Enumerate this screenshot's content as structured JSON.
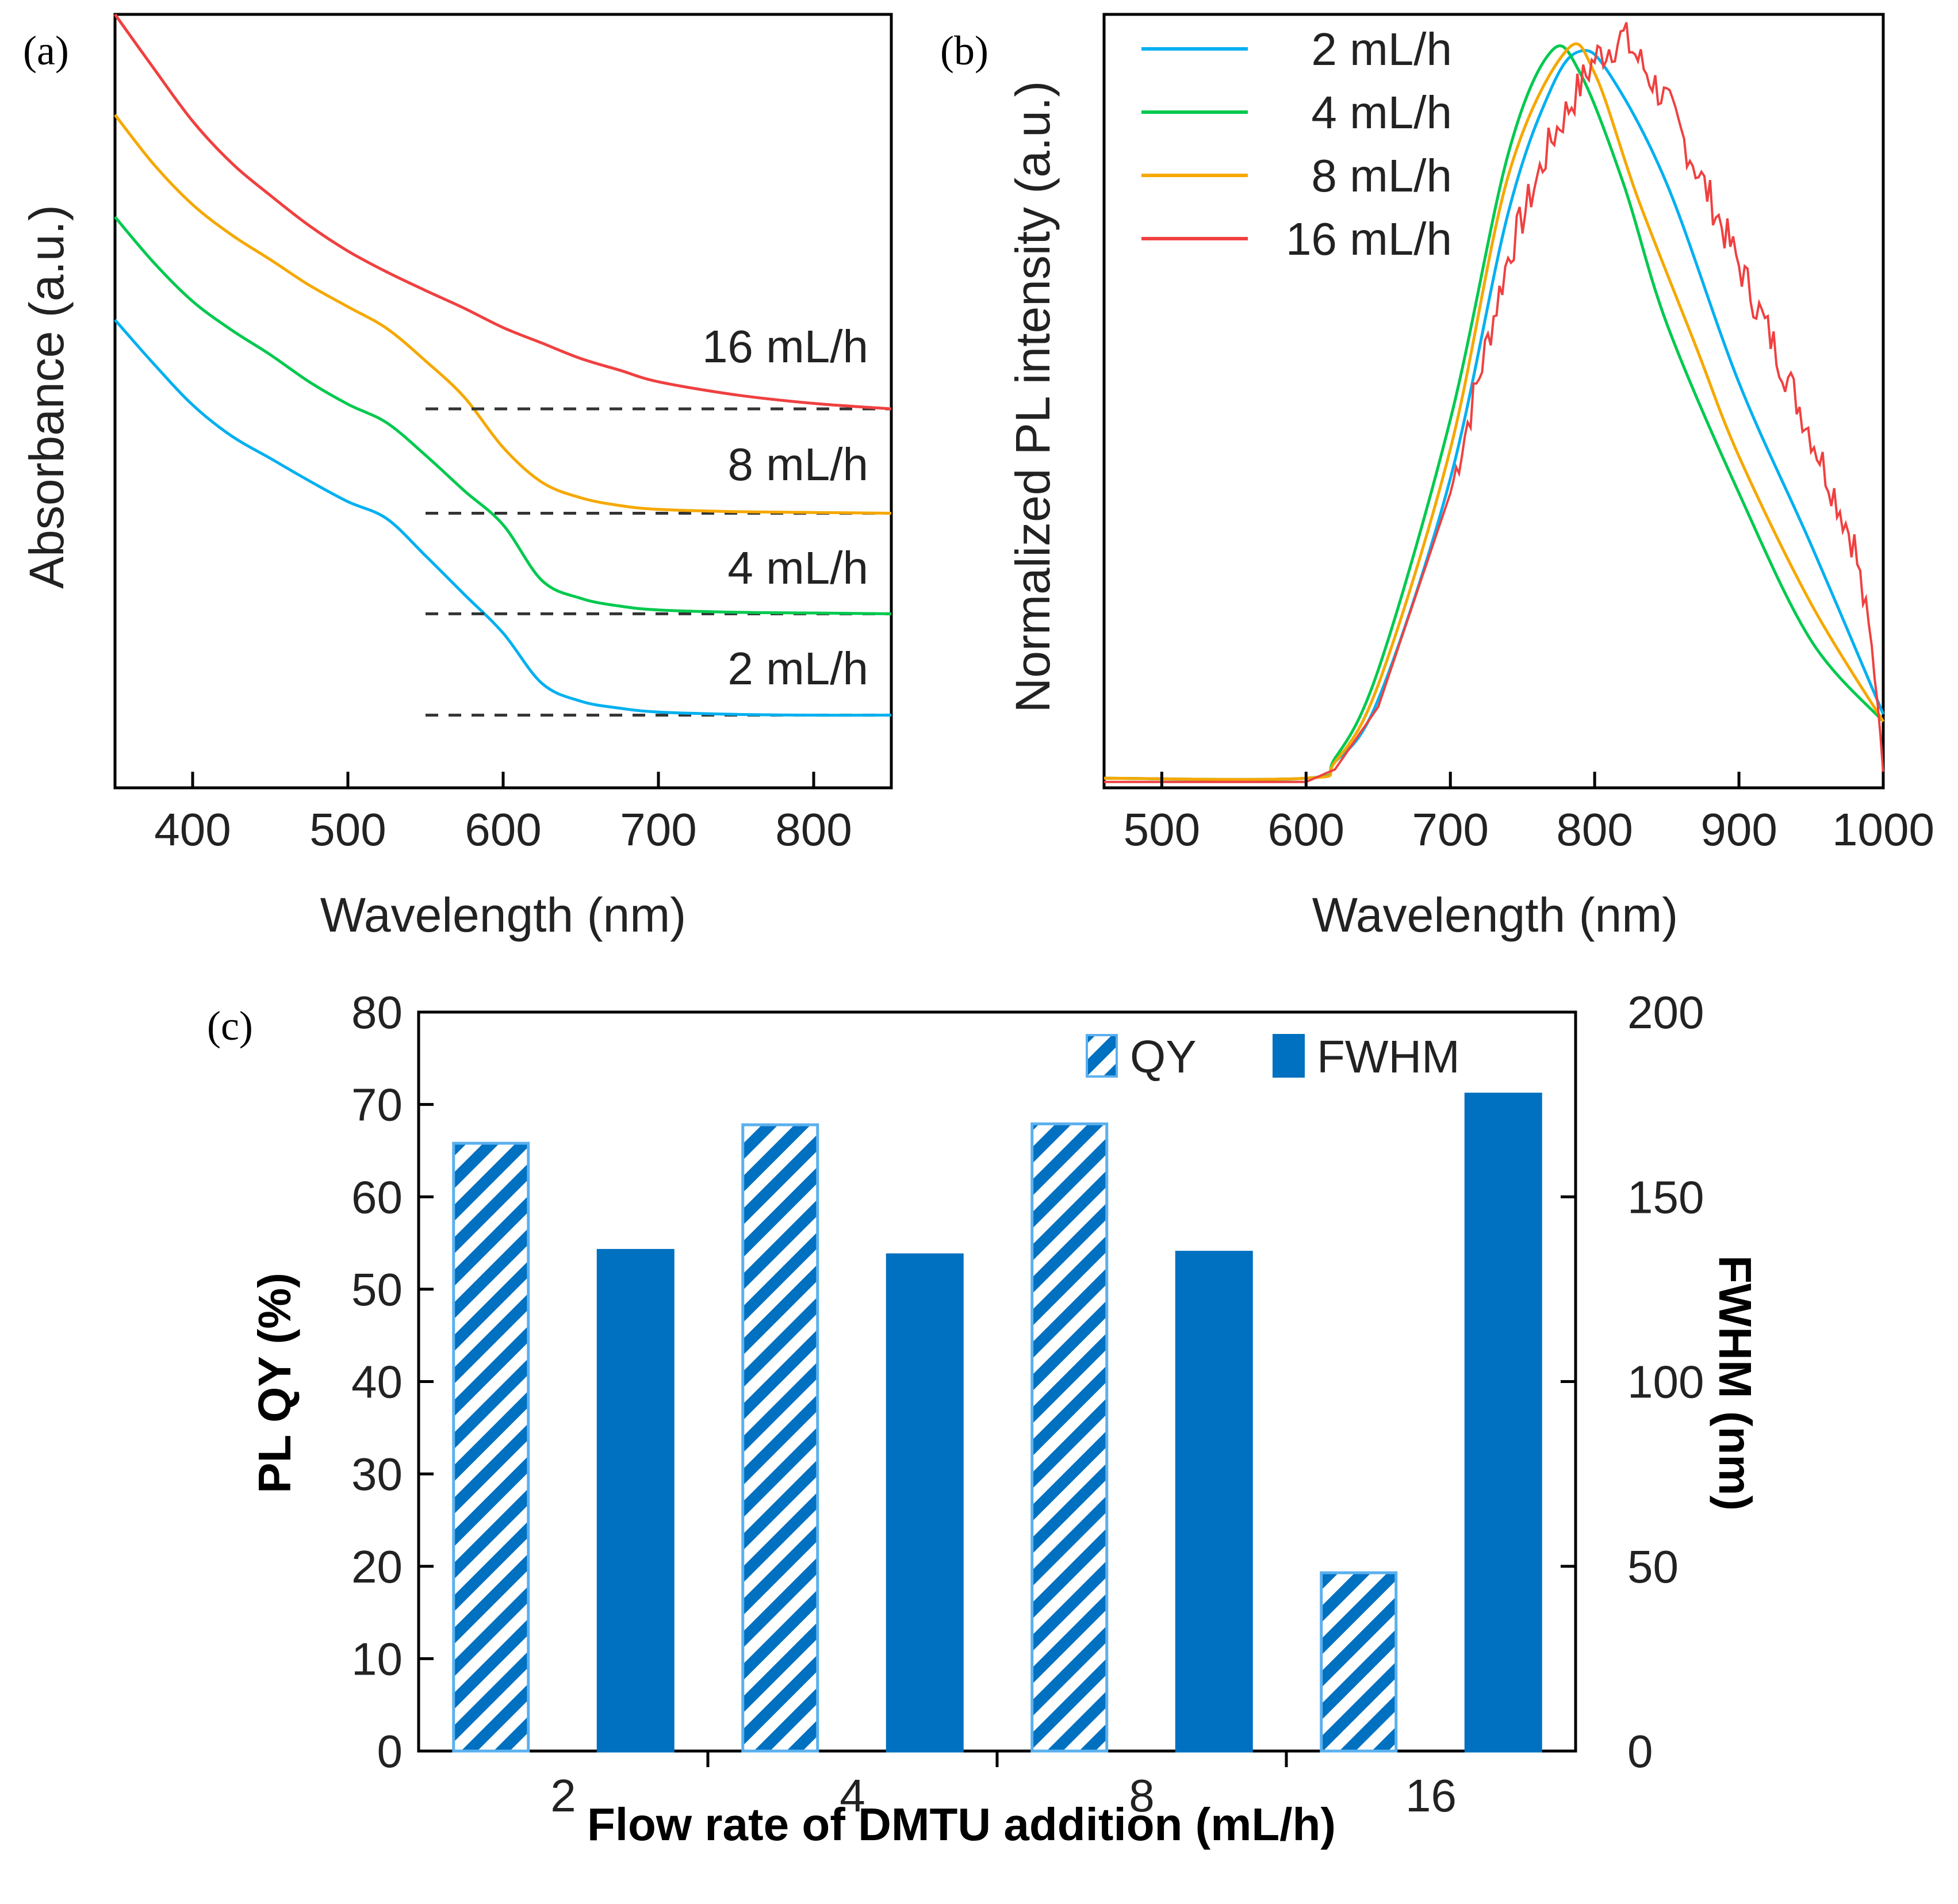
{
  "chart_data": [
    {
      "panel": "(a)",
      "type": "line",
      "title": "",
      "xlabel": "Wavelength (nm)",
      "ylabel": "Absorbance (a.u.)",
      "xlim": [
        350,
        850
      ],
      "ylim": [
        0,
        1
      ],
      "xticks": [
        400,
        500,
        600,
        700,
        800
      ],
      "y_ticks_shown": false,
      "series": [
        {
          "name": "2 mL/h",
          "color": "#00B0F0",
          "baseline": 0.094,
          "points": [
            [
              350,
              0.605
            ],
            [
              375,
              0.548
            ],
            [
              400,
              0.495
            ],
            [
              425,
              0.455
            ],
            [
              450,
              0.426
            ],
            [
              475,
              0.397
            ],
            [
              500,
              0.37
            ],
            [
              525,
              0.348
            ],
            [
              550,
              0.3
            ],
            [
              575,
              0.25
            ],
            [
              600,
              0.2
            ],
            [
              625,
              0.135
            ],
            [
              650,
              0.112
            ],
            [
              675,
              0.103
            ],
            [
              700,
              0.098
            ],
            [
              750,
              0.095
            ],
            [
              800,
              0.094
            ],
            [
              850,
              0.094
            ]
          ]
        },
        {
          "name": "4 mL/h",
          "color": "#00C94E",
          "baseline": 0.225,
          "points": [
            [
              350,
              0.738
            ],
            [
              375,
              0.679
            ],
            [
              400,
              0.629
            ],
            [
              425,
              0.592
            ],
            [
              450,
              0.56
            ],
            [
              475,
              0.525
            ],
            [
              500,
              0.496
            ],
            [
              525,
              0.472
            ],
            [
              550,
              0.43
            ],
            [
              575,
              0.384
            ],
            [
              600,
              0.34
            ],
            [
              625,
              0.268
            ],
            [
              650,
              0.245
            ],
            [
              675,
              0.235
            ],
            [
              700,
              0.23
            ],
            [
              750,
              0.227
            ],
            [
              800,
              0.226
            ],
            [
              850,
              0.225
            ]
          ]
        },
        {
          "name": "8 mL/h",
          "color": "#F5A800",
          "baseline": 0.355,
          "points": [
            [
              350,
              0.87
            ],
            [
              375,
              0.806
            ],
            [
              400,
              0.754
            ],
            [
              425,
              0.715
            ],
            [
              450,
              0.683
            ],
            [
              475,
              0.65
            ],
            [
              500,
              0.622
            ],
            [
              525,
              0.594
            ],
            [
              550,
              0.552
            ],
            [
              575,
              0.505
            ],
            [
              600,
              0.44
            ],
            [
              625,
              0.395
            ],
            [
              650,
              0.375
            ],
            [
              675,
              0.365
            ],
            [
              700,
              0.36
            ],
            [
              750,
              0.357
            ],
            [
              800,
              0.356
            ],
            [
              850,
              0.355
            ]
          ]
        },
        {
          "name": "16 mL/h",
          "color": "#F04040",
          "baseline": 0.49,
          "points": [
            [
              350,
              1.0
            ],
            [
              375,
              0.93
            ],
            [
              400,
              0.862
            ],
            [
              425,
              0.808
            ],
            [
              450,
              0.766
            ],
            [
              475,
              0.727
            ],
            [
              500,
              0.694
            ],
            [
              525,
              0.667
            ],
            [
              550,
              0.643
            ],
            [
              575,
              0.62
            ],
            [
              600,
              0.595
            ],
            [
              625,
              0.575
            ],
            [
              650,
              0.555
            ],
            [
              675,
              0.54
            ],
            [
              700,
              0.525
            ],
            [
              750,
              0.508
            ],
            [
              800,
              0.497
            ],
            [
              850,
              0.49
            ]
          ]
        }
      ],
      "curve_labels": [
        "16 mL/h",
        "8 mL/h",
        "4 mL/h",
        "2 mL/h"
      ],
      "dashed_baselines_from_nm": 550
    },
    {
      "panel": "(b)",
      "type": "line",
      "title": "",
      "xlabel": "Wavelength (nm)",
      "ylabel": "Normalized PL intensity (a.u.)",
      "xlim": [
        460,
        1000
      ],
      "ylim": [
        0,
        1.05
      ],
      "xticks": [
        500,
        600,
        700,
        800,
        900,
        1000
      ],
      "y_ticks_shown": false,
      "legend_position": "top-left",
      "series": [
        {
          "name": "2 mL/h",
          "color": "#00B0F0",
          "noisy": false,
          "points": [
            [
              460,
              0.013
            ],
            [
              600,
              0.013
            ],
            [
              620,
              0.035
            ],
            [
              650,
              0.12
            ],
            [
              700,
              0.42
            ],
            [
              740,
              0.78
            ],
            [
              770,
              0.95
            ],
            [
              790,
              1.0
            ],
            [
              810,
              0.97
            ],
            [
              850,
              0.82
            ],
            [
              900,
              0.55
            ],
            [
              950,
              0.33
            ],
            [
              1000,
              0.1
            ]
          ]
        },
        {
          "name": "4 mL/h",
          "color": "#00C94E",
          "noisy": false,
          "points": [
            [
              460,
              0.013
            ],
            [
              600,
              0.013
            ],
            [
              620,
              0.04
            ],
            [
              650,
              0.16
            ],
            [
              700,
              0.5
            ],
            [
              740,
              0.86
            ],
            [
              770,
              1.0
            ],
            [
              790,
              0.97
            ],
            [
              820,
              0.82
            ],
            [
              850,
              0.63
            ],
            [
              900,
              0.4
            ],
            [
              950,
              0.2
            ],
            [
              1000,
              0.09
            ]
          ]
        },
        {
          "name": "8 mL/h",
          "color": "#F5A800",
          "noisy": false,
          "points": [
            [
              460,
              0.013
            ],
            [
              600,
              0.013
            ],
            [
              620,
              0.035
            ],
            [
              650,
              0.14
            ],
            [
              700,
              0.46
            ],
            [
              740,
              0.83
            ],
            [
              780,
              1.0
            ],
            [
              800,
              0.97
            ],
            [
              830,
              0.8
            ],
            [
              870,
              0.6
            ],
            [
              900,
              0.45
            ],
            [
              950,
              0.25
            ],
            [
              1000,
              0.09
            ]
          ]
        },
        {
          "name": "16 mL/h",
          "color": "#F04040",
          "noisy": true,
          "points": [
            [
              460,
              0.008
            ],
            [
              600,
              0.008
            ],
            [
              620,
              0.025
            ],
            [
              650,
              0.11
            ],
            [
              700,
              0.4
            ],
            [
              740,
              0.72
            ],
            [
              770,
              0.88
            ],
            [
              800,
              0.99
            ],
            [
              820,
              1.02
            ],
            [
              850,
              0.93
            ],
            [
              880,
              0.8
            ],
            [
              920,
              0.62
            ],
            [
              950,
              0.48
            ],
            [
              980,
              0.33
            ],
            [
              995,
              0.15
            ],
            [
              1000,
              0.02
            ]
          ]
        }
      ]
    },
    {
      "panel": "(c)",
      "type": "bar",
      "title": "",
      "xlabel": "Flow rate of DMTU addition (mL/h)",
      "ylabel": "PL QY (%)",
      "y2label": "FWHM (nm)",
      "categories": [
        "2",
        "4",
        "8",
        "16"
      ],
      "ylim": [
        0,
        80
      ],
      "y2lim": [
        0,
        200
      ],
      "yticks": [
        0,
        10,
        20,
        30,
        40,
        50,
        60,
        70,
        80
      ],
      "y2ticks": [
        0,
        50,
        100,
        150,
        200
      ],
      "legend_position": "top-right",
      "series": [
        {
          "name": "QY",
          "axis": "left",
          "pattern": "hatched",
          "color": "#0070C0",
          "values": [
            65.8,
            67.8,
            67.9,
            19.3
          ]
        },
        {
          "name": "FWHM",
          "axis": "right",
          "pattern": "solid",
          "color": "#0070C0",
          "values": [
            135.5,
            134.3,
            135.0,
            177.8
          ]
        }
      ]
    }
  ]
}
